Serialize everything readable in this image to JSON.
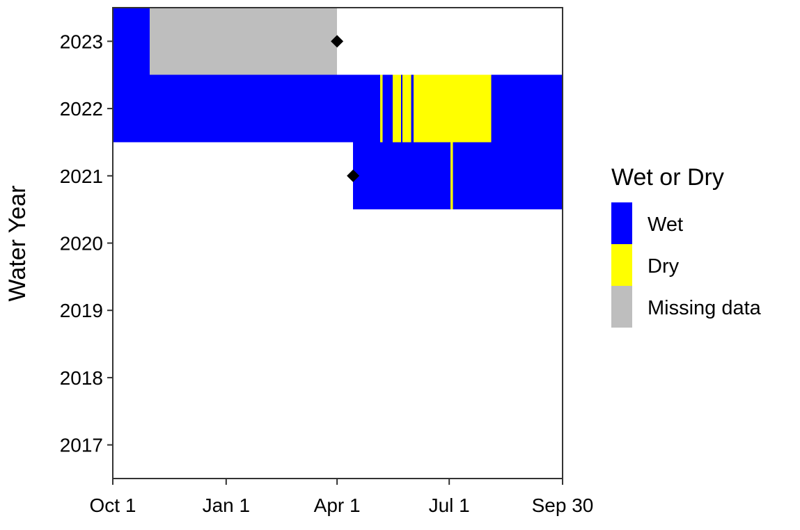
{
  "chart_data": {
    "type": "heatmap",
    "title": "",
    "xlabel": "",
    "ylabel": "Water Year",
    "x_tick_labels": [
      "Oct 1",
      "Jan 1",
      "Apr 1",
      "Jul 1",
      "Sep 30"
    ],
    "x_tick_days": [
      0,
      92,
      182,
      273,
      364
    ],
    "y_tick_labels": [
      "2017",
      "2018",
      "2019",
      "2020",
      "2021",
      "2022",
      "2023"
    ],
    "ylim": [
      2016.5,
      2023.5
    ],
    "xlim_days": [
      0,
      365
    ],
    "grid": false,
    "legend": {
      "title": "Wet or Dry",
      "position": "right",
      "entries": [
        {
          "label": "Wet",
          "color": "#0000FF"
        },
        {
          "label": "Dry",
          "color": "#FFFF00"
        },
        {
          "label": "Missing data",
          "color": "#BEBEBE"
        }
      ]
    },
    "series": [
      {
        "year": 2023,
        "segments": [
          {
            "start_day": 0,
            "end_day": 30,
            "status": "Wet"
          },
          {
            "start_day": 30,
            "end_day": 182,
            "status": "Missing data"
          }
        ],
        "marker_day": 182
      },
      {
        "year": 2022,
        "segments": [
          {
            "start_day": 0,
            "end_day": 217,
            "status": "Wet"
          },
          {
            "start_day": 217,
            "end_day": 219,
            "status": "Dry"
          },
          {
            "start_day": 219,
            "end_day": 227,
            "status": "Wet"
          },
          {
            "start_day": 227,
            "end_day": 234,
            "status": "Dry"
          },
          {
            "start_day": 234,
            "end_day": 235,
            "status": "Wet"
          },
          {
            "start_day": 235,
            "end_day": 242,
            "status": "Dry"
          },
          {
            "start_day": 242,
            "end_day": 244,
            "status": "Wet"
          },
          {
            "start_day": 244,
            "end_day": 307,
            "status": "Dry"
          },
          {
            "start_day": 307,
            "end_day": 365,
            "status": "Wet"
          }
        ]
      },
      {
        "year": 2021,
        "segments": [
          {
            "start_day": 195,
            "end_day": 274,
            "status": "Wet"
          },
          {
            "start_day": 274,
            "end_day": 276,
            "status": "Dry"
          },
          {
            "start_day": 276,
            "end_day": 365,
            "status": "Wet"
          }
        ],
        "marker_day": 195
      }
    ],
    "colors": {
      "Wet": "#0000FF",
      "Dry": "#FFFF00",
      "Missing data": "#BEBEBE",
      "marker": "#000000"
    }
  }
}
